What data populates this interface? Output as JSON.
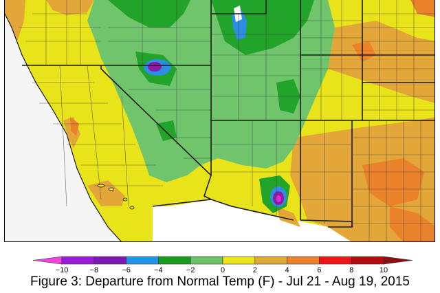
{
  "map": {
    "region": "Southwestern United States",
    "colors": {
      "ocean": "#f5f5f5",
      "mexico": "#ffffff",
      "yellow": "#e9e31a",
      "light_green": "#6fc46c",
      "green": "#22a329",
      "orange": "#e3a638",
      "dark_orange": "#e9822b",
      "blue": "#2b8ee3",
      "purple": "#8e1aa6",
      "magenta": "#e329d1",
      "border": "#1a1a1a"
    },
    "features": [
      {
        "name": "great-salt-lake",
        "category": "-4 to -2"
      },
      {
        "name": "central-nevada-cold-spot",
        "category": "-8 to -6"
      },
      {
        "name": "southeast-arizona-cold-spot",
        "category": "-10 to -8"
      }
    ]
  },
  "legend": {
    "bins": [
      {
        "min": -10,
        "max": -8,
        "color": "#9b19d9"
      },
      {
        "min": -8,
        "max": -6,
        "color": "#7b17b3"
      },
      {
        "min": -6,
        "max": -4,
        "color": "#2196e8"
      },
      {
        "min": -4,
        "max": -2,
        "color": "#1a9a1e"
      },
      {
        "min": -2,
        "max": 0,
        "color": "#6cc365"
      },
      {
        "min": 0,
        "max": 2,
        "color": "#ede51a"
      },
      {
        "min": 2,
        "max": 4,
        "color": "#e0aa3a"
      },
      {
        "min": 4,
        "max": 6,
        "color": "#e9822b"
      },
      {
        "min": 6,
        "max": 8,
        "color": "#f01414"
      },
      {
        "min": 8,
        "max": 10,
        "color": "#b40a0a"
      }
    ],
    "low_end_color": "#f043e0",
    "high_end_color": "#8c0f0f",
    "tick_labels": [
      "−10",
      "−8",
      "−6",
      "−4",
      "−2",
      "0",
      "2",
      "4",
      "6",
      "8",
      "10"
    ]
  },
  "caption": "Figure 3: Departure from Normal Temp (F) - Jul 21 - Aug 19, 2015"
}
